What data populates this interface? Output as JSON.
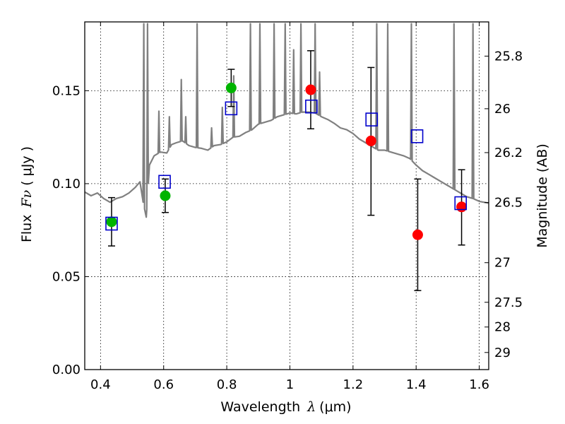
{
  "chart_data": {
    "type": "scatter",
    "title": "",
    "xlabel": "Wavelength",
    "xlabel_symbol": "λ",
    "xlabel_unit": "(μm)",
    "ylabel": "Flux",
    "ylabel_symbol": "Fν",
    "ylabel_unit": "( μJy )",
    "y2label": "Magnitude (AB)",
    "xlim": [
      0.35,
      1.63
    ],
    "ylim": [
      0.0,
      0.187
    ],
    "grid": true,
    "x_ticks": [
      {
        "v": 0.4,
        "label": "0.4"
      },
      {
        "v": 0.6,
        "label": "0.6"
      },
      {
        "v": 0.8,
        "label": "0.8"
      },
      {
        "v": 1.0,
        "label": "1"
      },
      {
        "v": 1.2,
        "label": "1.2"
      },
      {
        "v": 1.4,
        "label": "1.4"
      },
      {
        "v": 1.6,
        "label": "1.6"
      }
    ],
    "y_ticks": [
      {
        "v": 0.0,
        "label": "0.00"
      },
      {
        "v": 0.05,
        "label": "0.05"
      },
      {
        "v": 0.1,
        "label": "0.10"
      },
      {
        "v": 0.15,
        "label": "0.15"
      }
    ],
    "mag_ticks": [
      {
        "label": "25.8",
        "flux": 0.1686
      },
      {
        "label": "26",
        "flux": 0.1403
      },
      {
        "label": "26.2",
        "flux": 0.1167
      },
      {
        "label": "26.5",
        "flux": 0.0899
      },
      {
        "label": "27",
        "flux": 0.0575
      },
      {
        "label": "27.5",
        "flux": 0.0362
      },
      {
        "label": "28",
        "flux": 0.0229
      },
      {
        "label": "29",
        "flux": 0.0092
      }
    ],
    "colors": {
      "spectrum": "#808080",
      "hst": "#00b400",
      "ground": "#ff0000",
      "model": "#0000cc",
      "errorbar": "#000000"
    },
    "series": [
      {
        "style": "green-circle-with-errorbar",
        "points": [
          {
            "x": 0.435,
            "y": 0.0795,
            "yerr_low": 0.0665,
            "yerr_high": 0.0925
          },
          {
            "x": 0.605,
            "y": 0.0935,
            "yerr_low": 0.0845,
            "yerr_high": 0.1025
          },
          {
            "x": 0.814,
            "y": 0.1515,
            "yerr_low": 0.1415,
            "yerr_high": 0.1615
          }
        ]
      },
      {
        "style": "red-circle-with-errorbar",
        "points": [
          {
            "x": 1.066,
            "y": 0.1505,
            "yerr_low": 0.1295,
            "yerr_high": 0.1715
          },
          {
            "x": 1.257,
            "y": 0.123,
            "yerr_low": 0.083,
            "yerr_high": 0.1625
          },
          {
            "x": 1.405,
            "y": 0.0725,
            "yerr_low": 0.0425,
            "yerr_high": 0.1025
          },
          {
            "x": 1.544,
            "y": 0.0875,
            "yerr_low": 0.067,
            "yerr_high": 0.1075
          }
        ]
      },
      {
        "style": "blue-open-square",
        "points": [
          {
            "x": 0.435,
            "y": 0.0785
          },
          {
            "x": 0.603,
            "y": 0.101
          },
          {
            "x": 0.814,
            "y": 0.1405
          },
          {
            "x": 1.068,
            "y": 0.1415
          },
          {
            "x": 1.259,
            "y": 0.1345
          },
          {
            "x": 1.403,
            "y": 0.1255
          },
          {
            "x": 1.541,
            "y": 0.0895
          }
        ]
      }
    ],
    "spectrum_continuum": [
      [
        0.35,
        0.0955
      ],
      [
        0.37,
        0.0935
      ],
      [
        0.39,
        0.095
      ],
      [
        0.41,
        0.092
      ],
      [
        0.43,
        0.09
      ],
      [
        0.45,
        0.092
      ],
      [
        0.47,
        0.093
      ],
      [
        0.49,
        0.095
      ],
      [
        0.51,
        0.098
      ],
      [
        0.525,
        0.101
      ],
      [
        0.535,
        0.09
      ],
      [
        0.545,
        0.082
      ],
      [
        0.555,
        0.11
      ],
      [
        0.57,
        0.115
      ],
      [
        0.59,
        0.117
      ],
      [
        0.61,
        0.1165
      ],
      [
        0.625,
        0.121
      ],
      [
        0.64,
        0.122
      ],
      [
        0.66,
        0.123
      ],
      [
        0.68,
        0.1205
      ],
      [
        0.7,
        0.1195
      ],
      [
        0.72,
        0.119
      ],
      [
        0.74,
        0.118
      ],
      [
        0.76,
        0.1205
      ],
      [
        0.78,
        0.121
      ],
      [
        0.8,
        0.1225
      ],
      [
        0.82,
        0.125
      ],
      [
        0.84,
        0.1255
      ],
      [
        0.86,
        0.1275
      ],
      [
        0.88,
        0.129
      ],
      [
        0.9,
        0.132
      ],
      [
        0.92,
        0.133
      ],
      [
        0.94,
        0.134
      ],
      [
        0.96,
        0.136
      ],
      [
        0.98,
        0.137
      ],
      [
        1.0,
        0.138
      ],
      [
        1.02,
        0.1375
      ],
      [
        1.04,
        0.1385
      ],
      [
        1.06,
        0.1385
      ],
      [
        1.08,
        0.138
      ],
      [
        1.1,
        0.136
      ],
      [
        1.12,
        0.1345
      ],
      [
        1.14,
        0.1325
      ],
      [
        1.16,
        0.13
      ],
      [
        1.18,
        0.129
      ],
      [
        1.2,
        0.127
      ],
      [
        1.22,
        0.124
      ],
      [
        1.24,
        0.122
      ],
      [
        1.26,
        0.12
      ],
      [
        1.28,
        0.118
      ],
      [
        1.3,
        0.118
      ],
      [
        1.32,
        0.117
      ],
      [
        1.34,
        0.116
      ],
      [
        1.36,
        0.115
      ],
      [
        1.38,
        0.1135
      ],
      [
        1.4,
        0.11
      ],
      [
        1.42,
        0.107
      ],
      [
        1.44,
        0.105
      ],
      [
        1.46,
        0.103
      ],
      [
        1.48,
        0.101
      ],
      [
        1.5,
        0.099
      ],
      [
        1.52,
        0.097
      ],
      [
        1.54,
        0.095
      ],
      [
        1.56,
        0.093
      ],
      [
        1.58,
        0.092
      ],
      [
        1.6,
        0.0905
      ],
      [
        1.63,
        0.0895
      ]
    ],
    "spectrum_emission_lines": [
      {
        "x": 0.537,
        "peak": 0.186
      },
      {
        "x": 0.549,
        "peak": 0.186
      },
      {
        "x": 0.585,
        "peak": 0.139
      },
      {
        "x": 0.618,
        "peak": 0.136
      },
      {
        "x": 0.656,
        "peak": 0.156
      },
      {
        "x": 0.67,
        "peak": 0.136
      },
      {
        "x": 0.706,
        "peak": 0.186
      },
      {
        "x": 0.752,
        "peak": 0.13
      },
      {
        "x": 0.786,
        "peak": 0.141
      },
      {
        "x": 0.822,
        "peak": 0.158
      },
      {
        "x": 0.875,
        "peak": 0.186
      },
      {
        "x": 0.905,
        "peak": 0.186
      },
      {
        "x": 0.95,
        "peak": 0.186
      },
      {
        "x": 0.985,
        "peak": 0.186
      },
      {
        "x": 1.012,
        "peak": 0.172
      },
      {
        "x": 1.035,
        "peak": 0.186
      },
      {
        "x": 1.08,
        "peak": 0.186
      },
      {
        "x": 1.094,
        "peak": 0.16
      },
      {
        "x": 1.275,
        "peak": 0.186
      },
      {
        "x": 1.31,
        "peak": 0.186
      },
      {
        "x": 1.385,
        "peak": 0.186
      },
      {
        "x": 1.52,
        "peak": 0.186
      },
      {
        "x": 1.58,
        "peak": 0.186
      }
    ]
  }
}
